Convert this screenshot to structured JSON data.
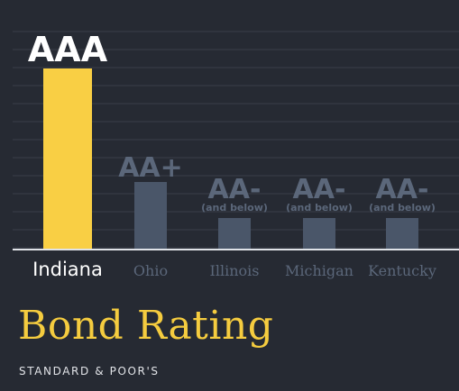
{
  "chart_data": {
    "type": "bar",
    "title": "Bond Rating",
    "subtitle": "STANDARD & POOR'S",
    "categories": [
      "Indiana",
      "Ohio",
      "Illinois",
      "Michigan",
      "Kentucky"
    ],
    "values": [
      "AAA",
      "AA+",
      "AA-",
      "AA-",
      "AA-"
    ],
    "value_notes": [
      "",
      "",
      "(and below)",
      "(and below)",
      "(and below)"
    ],
    "highlight_category": "Indiana",
    "xlabel": "",
    "ylabel": "",
    "grid": true,
    "legend": "none",
    "rating_scale": [
      "AA-",
      "AA",
      "AA+",
      "AAA"
    ]
  },
  "colors": {
    "background": "#262a33",
    "highlight_bar": "#f9cf44",
    "bar": "#4a5669",
    "highlight_label": "#ffffff",
    "label": "#5b677a",
    "grid": "#3b3f48",
    "baseline": "#e0e3e8",
    "title": "#f5cc3f",
    "subtitle": "#e2e4e8"
  }
}
